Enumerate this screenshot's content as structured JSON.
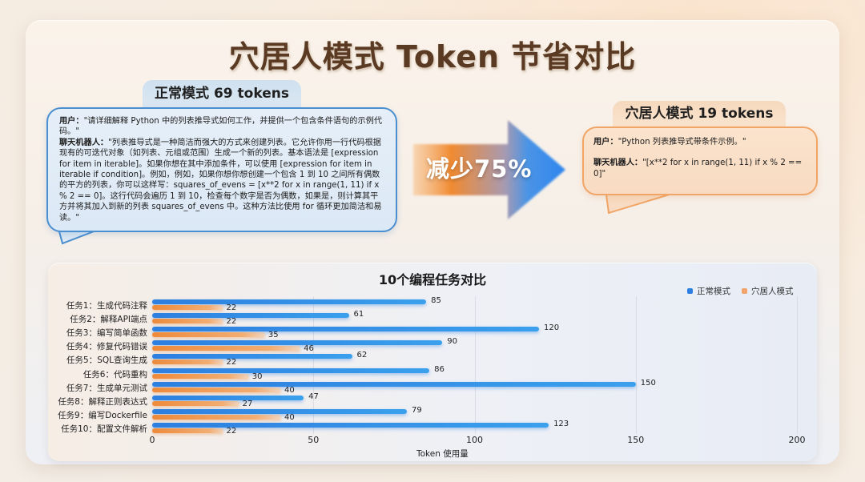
{
  "title": "穴居人模式 Token 节省对比",
  "normal_mode": {
    "label": "正常模式 69 tokens",
    "user_label": "用户：",
    "user_text": "\"请详细解释 Python 中的列表推导式如何工作，并提供一个包含条件语句的示例代码。\"",
    "bot_label": "聊天机器人：",
    "bot_text": "\"列表推导式是一种简洁而强大的方式来创建列表。它允许你用一行代码根据现有的可迭代对象（如列表、元组或范围）生成一个新的列表。基本语法是 [expression for item in iterable]。如果你想在其中添加条件，可以使用 [expression for item in iterable if condition]。例如，例如，如果你想你想创建一个包含 1 到 10 之间所有偶数的平方的列表，你可以这样写：squares_of_evens = [x**2 for x in range(1, 11) if x % 2 == 0]。这行代码会遍历 1 到 10，检查每个数字是否为偶数，如果是，则计算其平方并将其加入到新的列表 squares_of_evens 中。这种方法比使用 for 循环更加简洁和易读。\""
  },
  "arrow": {
    "label": "减少75%"
  },
  "caveman_mode": {
    "label": "穴居人模式 19 tokens",
    "user_label": "用户：",
    "user_text": "\"Python 列表推导式带条件示例。\"",
    "bot_label": "聊天机器人：",
    "bot_text": "\"[x**2 for x in range(1, 11) if x % 2 == 0]\""
  },
  "colors": {
    "normal": "#2d7fe0",
    "caveman": "#ee8a3a",
    "title": "#5a3a22"
  },
  "chart_data": {
    "type": "bar",
    "orientation": "horizontal",
    "title": "10个编程任务对比",
    "xlabel": "Token 使用量",
    "ylabel": "",
    "xlim": [
      0,
      200
    ],
    "xticks": [
      0,
      50,
      100,
      150,
      200
    ],
    "grid": true,
    "legend_position": "top-right",
    "categories": [
      "任务1：生成代码注释",
      "任务2：解释API端点",
      "任务3：编写简单函数",
      "任务4：修复代码错误",
      "任务5：SQL查询生成",
      "任务6：代码重构",
      "任务7：生成单元测试",
      "任务8：解释正则表达式",
      "任务9：编写Dockerfile",
      "任务10：配置文件解析"
    ],
    "series": [
      {
        "name": "正常模式",
        "color": "#2d7fe0",
        "values": [
          85,
          61,
          120,
          90,
          62,
          86,
          150,
          47,
          79,
          123
        ]
      },
      {
        "name": "穴居人模式",
        "color": "#ee8a3a",
        "values": [
          22,
          22,
          35,
          46,
          22,
          30,
          40,
          27,
          40,
          22
        ]
      }
    ]
  }
}
